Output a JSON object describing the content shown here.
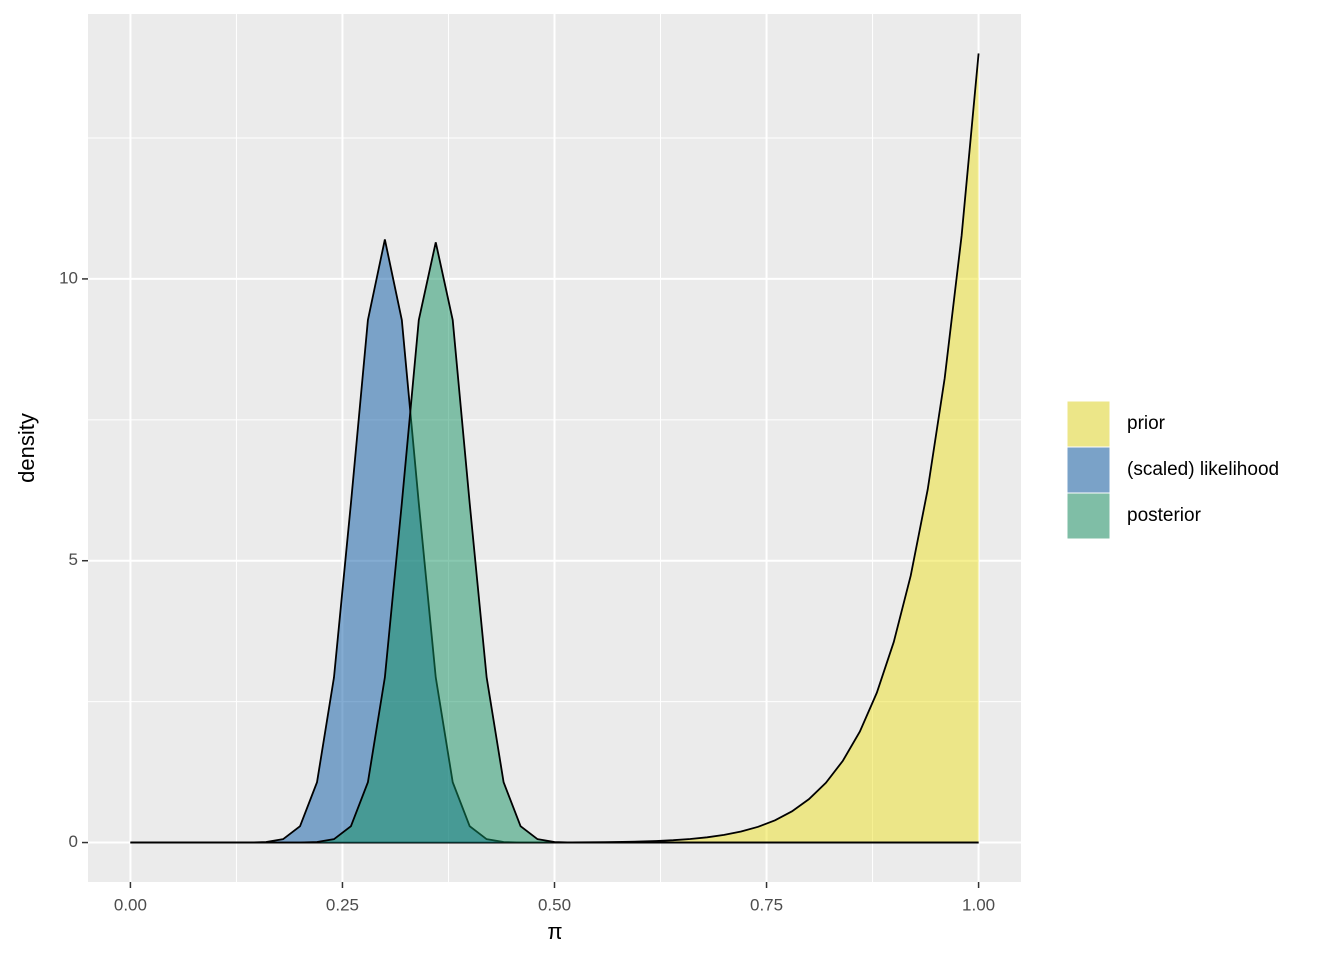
{
  "chart_data": {
    "type": "area",
    "x_label": "π",
    "y_label": "density",
    "x": [
      0,
      0.02,
      0.04,
      0.06,
      0.08,
      0.1,
      0.12,
      0.14,
      0.16,
      0.18,
      0.2,
      0.22,
      0.24,
      0.26,
      0.28,
      0.3,
      0.32,
      0.34,
      0.36,
      0.38,
      0.4,
      0.42,
      0.44,
      0.46,
      0.48,
      0.5,
      0.52,
      0.54,
      0.56,
      0.58,
      0.6,
      0.62,
      0.64,
      0.66,
      0.68,
      0.7,
      0.72,
      0.74,
      0.76,
      0.78,
      0.8,
      0.82,
      0.84,
      0.86,
      0.88,
      0.9,
      0.92,
      0.94,
      0.96,
      0.98,
      1
    ],
    "series": [
      {
        "name": "prior",
        "color": "#ede125",
        "values": [
          0,
          0,
          0,
          0,
          0,
          0,
          0,
          0,
          0,
          0,
          0,
          0,
          0,
          0,
          0,
          0,
          0,
          0,
          0,
          0,
          0,
          0,
          0,
          0,
          0.001,
          0.002,
          0.003,
          0.005,
          0.008,
          0.012,
          0.018,
          0.028,
          0.042,
          0.063,
          0.093,
          0.136,
          0.196,
          0.279,
          0.395,
          0.554,
          0.77,
          1.061,
          1.451,
          1.969,
          2.657,
          3.559,
          4.736,
          6.264,
          8.235,
          10.77,
          14
        ]
      },
      {
        "name": "(scaled) likelihood",
        "color": "#0959a5",
        "values": [
          0,
          0,
          0,
          0,
          0,
          0,
          0,
          0,
          0.01,
          0.06,
          0.29,
          1.07,
          2.93,
          6.02,
          9.27,
          10.7,
          9.27,
          6.02,
          2.93,
          1.07,
          0.29,
          0.06,
          0.01,
          0,
          0,
          0,
          0,
          0,
          0,
          0,
          0,
          0,
          0,
          0,
          0,
          0,
          0,
          0,
          0,
          0,
          0,
          0,
          0,
          0,
          0,
          0,
          0,
          0,
          0,
          0,
          0
        ]
      },
      {
        "name": "posterior",
        "color": "#139161",
        "values": [
          0,
          0,
          0,
          0,
          0,
          0,
          0,
          0,
          0,
          0,
          0,
          0.01,
          0.06,
          0.29,
          1.07,
          2.93,
          6.02,
          9.27,
          10.65,
          9.27,
          6.02,
          2.93,
          1.07,
          0.29,
          0.06,
          0.01,
          0,
          0,
          0,
          0,
          0,
          0,
          0,
          0,
          0,
          0,
          0,
          0,
          0,
          0,
          0,
          0,
          0,
          0,
          0,
          0,
          0,
          0,
          0,
          0,
          0
        ]
      }
    ],
    "fill_opacity": 0.5,
    "xlim": [
      -0.05,
      1.05
    ],
    "xticks": [
      {
        "value": 0,
        "label": "0.00"
      },
      {
        "value": 0.25,
        "label": "0.25"
      },
      {
        "value": 0.5,
        "label": "0.50"
      },
      {
        "value": 0.75,
        "label": "0.75"
      },
      {
        "value": 1,
        "label": "1.00"
      }
    ],
    "ylim": [
      -0.7,
      14.7
    ],
    "yticks": [
      0,
      5,
      10
    ],
    "grid": true,
    "legend": "right"
  }
}
